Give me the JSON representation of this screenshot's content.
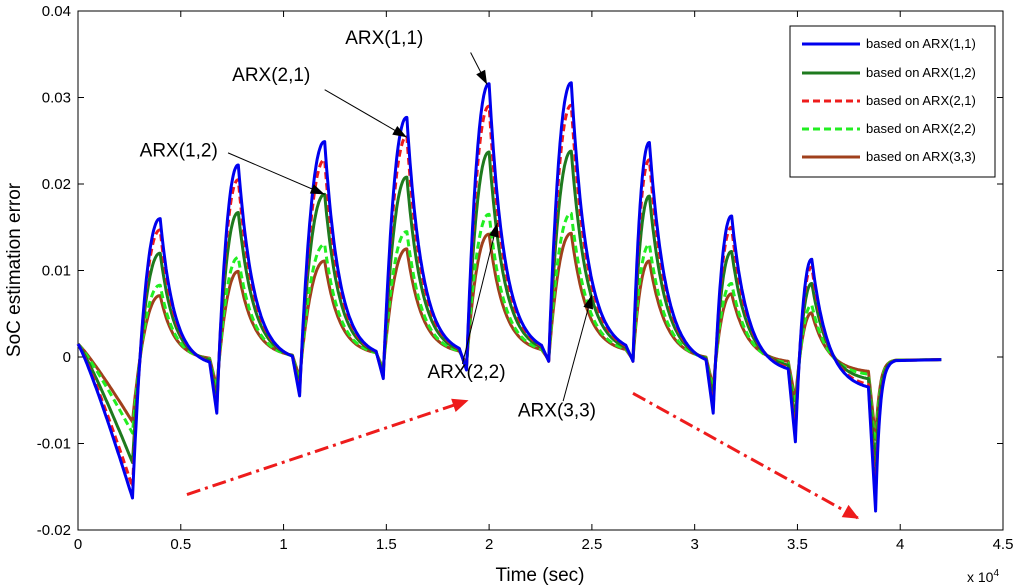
{
  "chart_data": {
    "type": "line",
    "xlabel": "Time (sec)",
    "ylabel": "SoC estimation error",
    "x_multiplier": "x 10^4",
    "x_multiplier_base": "x 10",
    "x_multiplier_exp": "4",
    "xlim": [
      0,
      4.5
    ],
    "ylim": [
      -0.02,
      0.04
    ],
    "xticks": [
      "0",
      "0.5",
      "1",
      "1.5",
      "2",
      "2.5",
      "3",
      "3.5",
      "4",
      "4.5"
    ],
    "yticks": [
      "-0.02",
      "-0.01",
      "0",
      "0.01",
      "0.02",
      "0.03",
      "0.04"
    ],
    "legend_position": "top-right",
    "colors": {
      "arx11": "#0000ee",
      "arx12": "#1e7a1e",
      "arx21": "#ee1c1c",
      "arx22": "#22ee22",
      "arx33": "#a0401c",
      "red_arrow": "#ee1c1c"
    },
    "peak_times": [
      0.4,
      0.78,
      1.2,
      1.6,
      2.0,
      2.4,
      2.78,
      3.18,
      3.57
    ],
    "series": [
      {
        "key": "arx11",
        "name": "based on ARX(1,1)",
        "style": "solid",
        "peaks": [
          0.016,
          0.0222,
          0.0249,
          0.0277,
          0.0316,
          0.0317,
          0.0248,
          0.0163,
          0.0113
        ],
        "dips": [
          -0.0163,
          -0.0065,
          -0.0045,
          -0.0025,
          -0.0015,
          -0.0005,
          -0.0005,
          -0.0065,
          -0.0098,
          -0.0178
        ]
      },
      {
        "key": "arx12",
        "name": "based on ARX(1,2)",
        "style": "solid",
        "peaks": [
          0.012,
          0.0167,
          0.0188,
          0.0208,
          0.0237,
          0.0238,
          0.0186,
          0.0122,
          0.0085
        ],
        "dips": [
          -0.0122,
          -0.005,
          -0.0035,
          -0.002,
          -0.0012,
          -0.0004,
          -0.0004,
          -0.005,
          -0.0075,
          -0.0135
        ]
      },
      {
        "key": "arx21",
        "name": "based on ARX(2,1)",
        "style": "dashed",
        "peaks": [
          0.0147,
          0.0205,
          0.0228,
          0.0255,
          0.029,
          0.0291,
          0.0228,
          0.015,
          0.0104
        ],
        "dips": [
          -0.015,
          -0.006,
          -0.0042,
          -0.0023,
          -0.0014,
          -0.0005,
          -0.0005,
          -0.006,
          -0.009,
          -0.0165
        ]
      },
      {
        "key": "arx22",
        "name": "based on ARX(2,2)",
        "style": "dashed",
        "peaks": [
          0.0083,
          0.0115,
          0.013,
          0.0145,
          0.0165,
          0.0166,
          0.013,
          0.0085,
          0.006
        ],
        "dips": [
          -0.0088,
          -0.004,
          -0.0028,
          -0.0016,
          -0.001,
          -0.0003,
          -0.0003,
          -0.004,
          -0.006,
          -0.011
        ]
      },
      {
        "key": "arx33",
        "name": "based on ARX(3,3)",
        "style": "solid",
        "peaks": [
          0.0071,
          0.0099,
          0.0111,
          0.0125,
          0.0142,
          0.0143,
          0.0111,
          0.0073,
          0.0051
        ],
        "dips": [
          -0.0075,
          -0.0035,
          -0.0024,
          -0.0014,
          -0.0008,
          -0.0003,
          -0.0003,
          -0.0035,
          -0.005,
          -0.0095
        ]
      }
    ],
    "annotations": [
      {
        "key": "a11",
        "text": "ARX(1,1)",
        "text_at": [
          1.3,
          0.0362
        ],
        "text_anchor": "start",
        "line_from": [
          1.91,
          0.0352
        ],
        "arrow_to": [
          1.99,
          0.0315
        ]
      },
      {
        "key": "a21",
        "text": "ARX(2,1)",
        "text_at": [
          0.75,
          0.0319
        ],
        "text_anchor": "start",
        "line_from": [
          1.2,
          0.0309
        ],
        "arrow_to": [
          1.6,
          0.0254
        ]
      },
      {
        "key": "a12",
        "text": "ARX(1,2)",
        "text_at": [
          0.3,
          0.0232
        ],
        "text_anchor": "start",
        "line_from": [
          0.73,
          0.0236
        ],
        "arrow_to": [
          1.2,
          0.0188
        ]
      },
      {
        "key": "a22",
        "text": "ARX(2,2)",
        "text_at": [
          1.7,
          -0.0024
        ],
        "text_anchor": "start",
        "line_from": [
          1.87,
          -0.0008
        ],
        "arrow_to": [
          2.04,
          0.0155
        ]
      },
      {
        "key": "a33",
        "text": "ARX(3,3)",
        "text_at": [
          2.14,
          -0.0069
        ],
        "text_anchor": "start",
        "line_from": [
          2.36,
          -0.0051
        ],
        "arrow_to": [
          2.5,
          0.0072
        ]
      }
    ],
    "trend_arrows": [
      {
        "key": "up",
        "from": [
          0.53,
          -0.0159
        ],
        "to": [
          1.9,
          -0.005
        ]
      },
      {
        "key": "down",
        "from": [
          2.7,
          -0.0042
        ],
        "to": [
          3.8,
          -0.0187
        ]
      }
    ]
  }
}
